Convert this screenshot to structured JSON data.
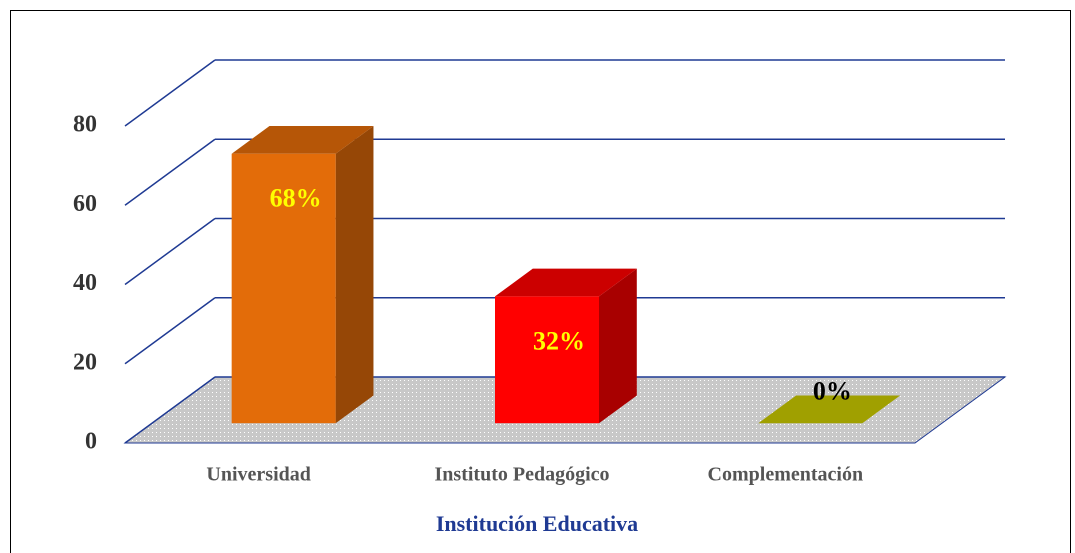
{
  "chart_data": {
    "type": "bar3d",
    "x_label": "Institución Educativa",
    "categories": [
      "Universidad",
      "Instituto Pedagógico",
      "Complementación"
    ],
    "values": [
      68,
      32,
      0
    ],
    "value_labels": [
      "68%",
      "32%",
      "0%"
    ],
    "colors": [
      "#e36c09",
      "#ff0000",
      "#c8c800"
    ],
    "label_colors": [
      "#ffff00",
      "#ffff00",
      "#000000"
    ],
    "ylim": [
      0,
      80
    ],
    "yticks": [
      0,
      20,
      40,
      60,
      80
    ],
    "grid": true
  }
}
